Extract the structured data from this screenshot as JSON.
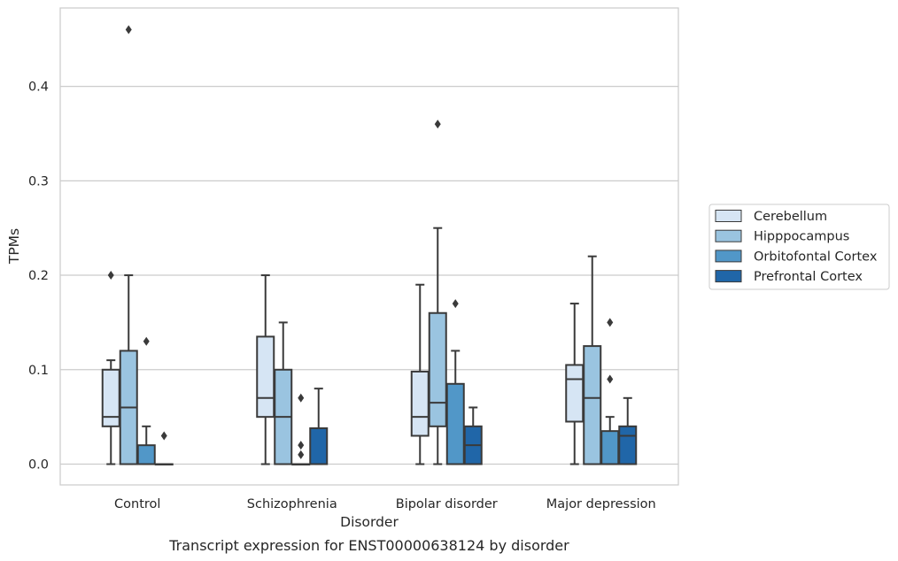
{
  "chart_data": {
    "type": "boxplot",
    "caption": "Transcript expression for ENST00000638124 by disorder",
    "xlabel": "Disorder",
    "ylabel": "TPMs",
    "ylim": [
      -0.022,
      0.483
    ],
    "yticks": [
      0.0,
      0.1,
      0.2,
      0.3,
      0.4
    ],
    "ytick_labels": [
      "0.0",
      "0.1",
      "0.2",
      "0.3",
      "0.4"
    ],
    "grid": "horizontal",
    "legend_position": "right",
    "categories": [
      "Control",
      "Schizophrenia",
      "Bipolar disorder",
      "Major depression"
    ],
    "series": [
      {
        "name": "Cerebellum",
        "color": "#d6e5f4",
        "boxes": [
          {
            "q1": 0.04,
            "median": 0.05,
            "q3": 0.1,
            "whisker_low": 0.0,
            "whisker_high": 0.11,
            "outliers": [
              0.2
            ]
          },
          {
            "q1": 0.05,
            "median": 0.07,
            "q3": 0.135,
            "whisker_low": 0.0,
            "whisker_high": 0.2,
            "outliers": []
          },
          {
            "q1": 0.03,
            "median": 0.05,
            "q3": 0.098,
            "whisker_low": 0.0,
            "whisker_high": 0.19,
            "outliers": []
          },
          {
            "q1": 0.045,
            "median": 0.09,
            "q3": 0.105,
            "whisker_low": 0.0,
            "whisker_high": 0.17,
            "outliers": []
          }
        ]
      },
      {
        "name": "Hipppocampus",
        "color": "#9ac4e0",
        "boxes": [
          {
            "q1": 0.0,
            "median": 0.06,
            "q3": 0.12,
            "whisker_low": 0.0,
            "whisker_high": 0.2,
            "outliers": [
              0.46
            ]
          },
          {
            "q1": 0.0,
            "median": 0.05,
            "q3": 0.1,
            "whisker_low": 0.0,
            "whisker_high": 0.15,
            "outliers": []
          },
          {
            "q1": 0.04,
            "median": 0.065,
            "q3": 0.16,
            "whisker_low": 0.0,
            "whisker_high": 0.25,
            "outliers": [
              0.36
            ]
          },
          {
            "q1": 0.0,
            "median": 0.07,
            "q3": 0.125,
            "whisker_low": 0.0,
            "whisker_high": 0.22,
            "outliers": []
          }
        ]
      },
      {
        "name": "Orbitofontal Cortex",
        "color": "#5197c8",
        "boxes": [
          {
            "q1": 0.0,
            "median": 0.0,
            "q3": 0.02,
            "whisker_low": 0.0,
            "whisker_high": 0.04,
            "outliers": [
              0.13
            ]
          },
          {
            "q1": 0.0,
            "median": 0.0,
            "q3": 0.0,
            "whisker_low": 0.0,
            "whisker_high": 0.0,
            "outliers": [
              0.01,
              0.02,
              0.07
            ]
          },
          {
            "q1": 0.0,
            "median": 0.0,
            "q3": 0.085,
            "whisker_low": 0.0,
            "whisker_high": 0.12,
            "outliers": [
              0.17
            ]
          },
          {
            "q1": 0.0,
            "median": 0.0,
            "q3": 0.035,
            "whisker_low": 0.0,
            "whisker_high": 0.05,
            "outliers": [
              0.09,
              0.15
            ]
          }
        ]
      },
      {
        "name": "Prefrontal Cortex",
        "color": "#2066a8",
        "boxes": [
          {
            "q1": 0.0,
            "median": 0.0,
            "q3": 0.0,
            "whisker_low": 0.0,
            "whisker_high": 0.0,
            "outliers": [
              0.03
            ]
          },
          {
            "q1": 0.0,
            "median": 0.0,
            "q3": 0.038,
            "whisker_low": 0.0,
            "whisker_high": 0.08,
            "outliers": []
          },
          {
            "q1": 0.0,
            "median": 0.02,
            "q3": 0.04,
            "whisker_low": 0.0,
            "whisker_high": 0.06,
            "outliers": []
          },
          {
            "q1": 0.0,
            "median": 0.03,
            "q3": 0.04,
            "whisker_low": 0.0,
            "whisker_high": 0.07,
            "outliers": []
          }
        ]
      }
    ]
  }
}
